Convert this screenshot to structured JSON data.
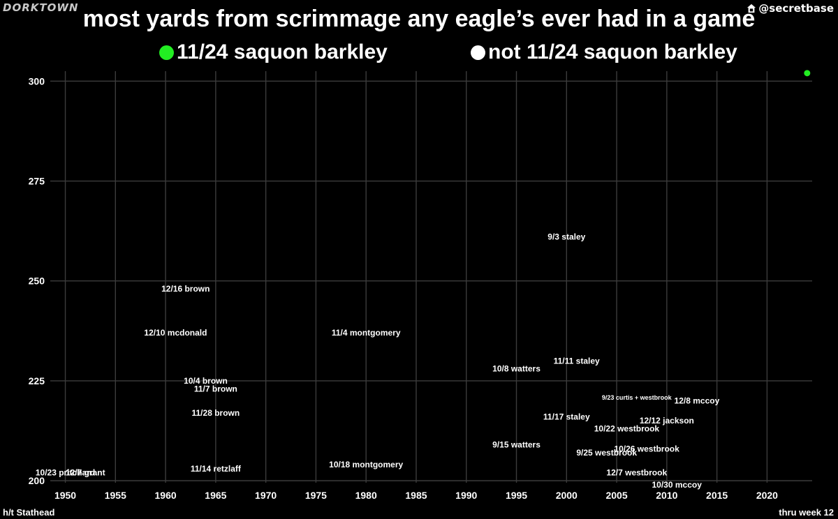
{
  "header": {
    "brand": "DORKTOWN",
    "handle": "@secretbase",
    "handle_icon": "house-icon"
  },
  "footer": {
    "left": "h/t Stathead",
    "right": "thru week 12"
  },
  "colors": {
    "background": "#000000",
    "highlight": "#22ee22",
    "points": "#ffffff",
    "grid": "#3c3c3c"
  },
  "chart_data": {
    "type": "scatter",
    "title": "most yards from scrimmage any eagle’s ever had in a game",
    "xlabel": "",
    "ylabel": "",
    "xlim": [
      1948.5,
      2024.5
    ],
    "ylim": [
      199.5,
      302.5
    ],
    "xticks": [
      1950,
      1955,
      1960,
      1965,
      1970,
      1975,
      1980,
      1985,
      1990,
      1995,
      2000,
      2005,
      2010,
      2015,
      2020
    ],
    "yticks": [
      200,
      225,
      250,
      275,
      300
    ],
    "grid": true,
    "legend": [
      {
        "label": "11/24 saquon barkley",
        "color": "#22ee22"
      },
      {
        "label": "not 11/24 saquon barkley",
        "color": "#ffffff"
      }
    ],
    "series": [
      {
        "name": "11/24 saquon barkley",
        "points": [
          {
            "x": 2024,
            "y": 302
          }
        ]
      },
      {
        "name": "not 11/24 saquon barkley",
        "points": [
          {
            "x": 2000,
            "y": 261,
            "label": "9/3 staley"
          },
          {
            "x": 1962,
            "y": 248,
            "label": "12/16 brown"
          },
          {
            "x": 1961,
            "y": 237,
            "label": "12/10 mcdonald"
          },
          {
            "x": 1980,
            "y": 237,
            "label": "11/4 montgomery"
          },
          {
            "x": 2001,
            "y": 230,
            "label": "11/11 staley"
          },
          {
            "x": 1995,
            "y": 228,
            "label": "10/8 watters"
          },
          {
            "x": 1964,
            "y": 225,
            "label": "10/4 brown"
          },
          {
            "x": 1965,
            "y": 223,
            "label": "11/7 brown"
          },
          {
            "x": 2007,
            "y": 221,
            "label": "9/23 curtis + westbrook",
            "small": true
          },
          {
            "x": 2013,
            "y": 220,
            "label": "12/8 mccoy"
          },
          {
            "x": 1965,
            "y": 217,
            "label": "11/28 brown"
          },
          {
            "x": 2000,
            "y": 216,
            "label": "11/17 staley"
          },
          {
            "x": 2010,
            "y": 215,
            "label": "12/12 jackson"
          },
          {
            "x": 2006,
            "y": 213,
            "label": "10/22 westbrook"
          },
          {
            "x": 1995,
            "y": 209,
            "label": "9/15 watters"
          },
          {
            "x": 2008,
            "y": 208,
            "label": "10/26 westbrook"
          },
          {
            "x": 2004,
            "y": 207,
            "label": "9/25 westbrook"
          },
          {
            "x": 1980,
            "y": 204,
            "label": "10/18 montgomery"
          },
          {
            "x": 1965,
            "y": 203,
            "label": "11/14 retzlaff"
          },
          {
            "x": 1950,
            "y": 202,
            "label": "10/23 pritchard"
          },
          {
            "x": 1952,
            "y": 202,
            "label": "12/7 grant"
          },
          {
            "x": 2007,
            "y": 202,
            "label": "12/7 westbrook"
          },
          {
            "x": 2011,
            "y": 199,
            "label": "10/30 mccoy"
          }
        ]
      }
    ]
  }
}
